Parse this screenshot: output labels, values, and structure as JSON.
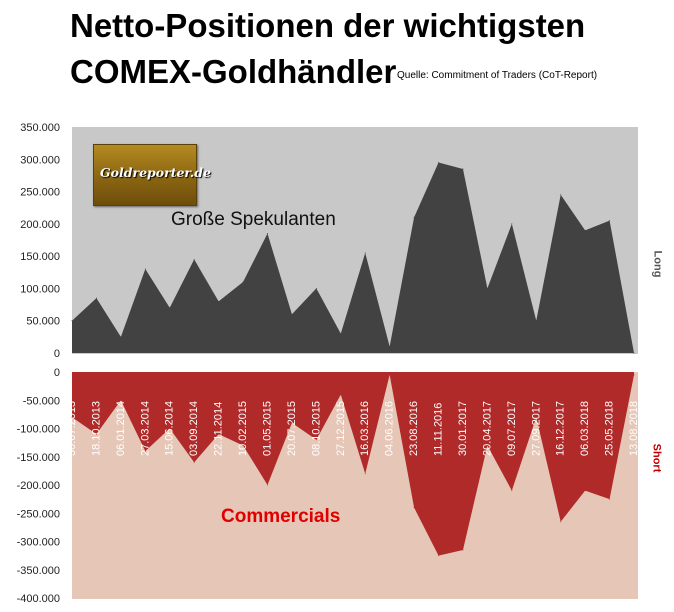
{
  "header": {
    "title_line1": "Netto-Positionen der wichtigsten",
    "title_line2": "COMEX-Goldhändler",
    "source": "Quelle: Commitment of Traders (CoT-Report)"
  },
  "logo": {
    "text": "Goldreporter.de",
    "color": "#9a7418"
  },
  "annotations": {
    "speculators": "Große Spekulanten",
    "commercials": "Commercials",
    "long_label": "Long",
    "short_label": "Short"
  },
  "colors": {
    "long_area": "#424242",
    "long_background": "#c8c8c8",
    "short_area": "#b02a2a",
    "short_background": "#e6c6b6"
  },
  "chart_data": [
    {
      "type": "area",
      "name": "Große Spekulanten",
      "side": "Long",
      "ylim": [
        0,
        350000
      ],
      "yticks": [
        0,
        50000,
        100000,
        150000,
        200000,
        250000,
        300000,
        350000
      ],
      "ytick_labels": [
        "0",
        "50.000",
        "100.000",
        "150.000",
        "200.000",
        "250.000",
        "300.000",
        "350.000"
      ],
      "grid": false,
      "x": [
        "30.07.2013",
        "18.10.2013",
        "06.01.2014",
        "27.03.2014",
        "15.06.2014",
        "03.09.2014",
        "22.11.2014",
        "10.02.2015",
        "01.05.2015",
        "20.07.2015",
        "08.10.2015",
        "27.12.2015",
        "16.03.2016",
        "04.06.2016",
        "23.08.2016",
        "11.11.2016",
        "30.01.2017",
        "20.04.2017",
        "09.07.2017",
        "27.09.2017",
        "16.12.2017",
        "06.03.2018",
        "25.05.2018",
        "13.08.2018"
      ],
      "values": [
        50000,
        85000,
        25000,
        130000,
        70000,
        145000,
        80000,
        110000,
        185000,
        60000,
        100000,
        30000,
        155000,
        10000,
        210000,
        295000,
        285000,
        100000,
        200000,
        50000,
        245000,
        190000,
        205000,
        -5000
      ]
    },
    {
      "type": "area",
      "name": "Commercials",
      "side": "Short",
      "ylim": [
        -400000,
        0
      ],
      "yticks": [
        0,
        -50000,
        -100000,
        -150000,
        -200000,
        -250000,
        -300000,
        -350000,
        -400000
      ],
      "ytick_labels": [
        "0",
        "-50.000",
        "-100.000",
        "-150.000",
        "-200.000",
        "-250.000",
        "-300.000",
        "-350.000",
        "-400.000"
      ],
      "grid": false,
      "x": [
        "30.07.2013",
        "18.10.2013",
        "06.01.2014",
        "27.03.2014",
        "15.06.2014",
        "03.09.2014",
        "22.11.2014",
        "10.02.2015",
        "01.05.2015",
        "20.07.2015",
        "08.10.2015",
        "27.12.2015",
        "16.03.2016",
        "04.06.2016",
        "23.08.2016",
        "11.11.2016",
        "30.01.2017",
        "20.04.2017",
        "09.07.2017",
        "27.09.2017",
        "16.12.2017",
        "06.03.2018",
        "25.05.2018",
        "13.08.2018"
      ],
      "values": [
        -80000,
        -110000,
        -50000,
        -140000,
        -100000,
        -160000,
        -110000,
        -130000,
        -200000,
        -90000,
        -120000,
        -40000,
        -180000,
        -5000,
        -240000,
        -325000,
        -315000,
        -130000,
        -210000,
        -80000,
        -265000,
        -210000,
        -225000,
        -5000
      ]
    }
  ]
}
